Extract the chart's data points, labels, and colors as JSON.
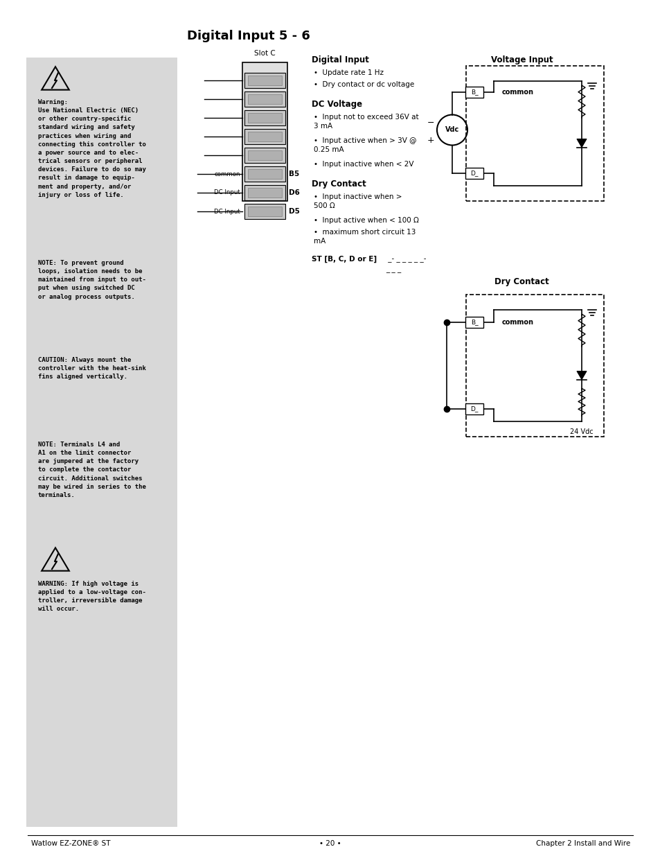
{
  "page_bg": "#ffffff",
  "sidebar_bg": "#d8d8d8",
  "title": "Digital Input 5 - 6",
  "title_fontsize": 14,
  "warning_text_1": "Warning:\nUse National Electric (NEC)\nor other country-specific\nstandard wiring and safety\npractices when wiring and\nconnecting this controller to\na power source and to elec-\ntrical sensors or peripheral\ndevices. Failure to do so may\nresult in damage to equip-\nment and property, and/or\ninjury or loss of life.",
  "note_text_1": "NOTE: To prevent ground\nloops, isolation needs to be\nmaintained from input to out-\nput when using switched DC\nor analog process outputs.",
  "caution_text": "CAUTION: Always mount the\ncontroller with the heat-sink\nfins aligned vertically.",
  "note_text_2": "NOTE: Terminals L4 and\nA1 on the limit connector\nare jumpered at the factory\nto complete the contactor\ncircuit. Additional switches\nmay be wired in series to the\nterminals.",
  "warning_text_2": "WARNING: If high voltage is\napplied to a low-voltage con-\ntroller, irreversible damage\nwill occur.",
  "digital_input_title": "Digital Input",
  "digital_input_bullets": [
    "Update rate 1 Hz",
    "Dry contact or dc voltage"
  ],
  "dc_voltage_title": "DC Voltage",
  "dc_voltage_bullets": [
    "Input not to exceed 36V at\n3 mA",
    "Input active when > 3V @\n0.25 mA",
    "Input inactive when < 2V"
  ],
  "dry_contact_title": "Dry Contact",
  "dry_contact_bullets": [
    "Input inactive when >\n500 Ω",
    "Input active when < 100 Ω",
    "maximum short circuit 13\nmA"
  ],
  "st_code_bold": "ST [B, C, D or E]",
  "st_code_normal": " _- _ _ _ _ _-\n_ _ _",
  "voltage_input_title": "Voltage Input",
  "dry_contact_title2": "Dry Contact",
  "footer_left": "Watlow EZ-ZONE® ST",
  "footer_center": "• 20 •",
  "footer_right": "Chapter 2 Install and Wire",
  "slot_c_label": "Slot C",
  "b5_label": "B5",
  "d6_label": "D6",
  "d5_label": "D5",
  "common_label": "common",
  "dc_input_label1": "DC Input",
  "dc_input_label2": "DC Input"
}
